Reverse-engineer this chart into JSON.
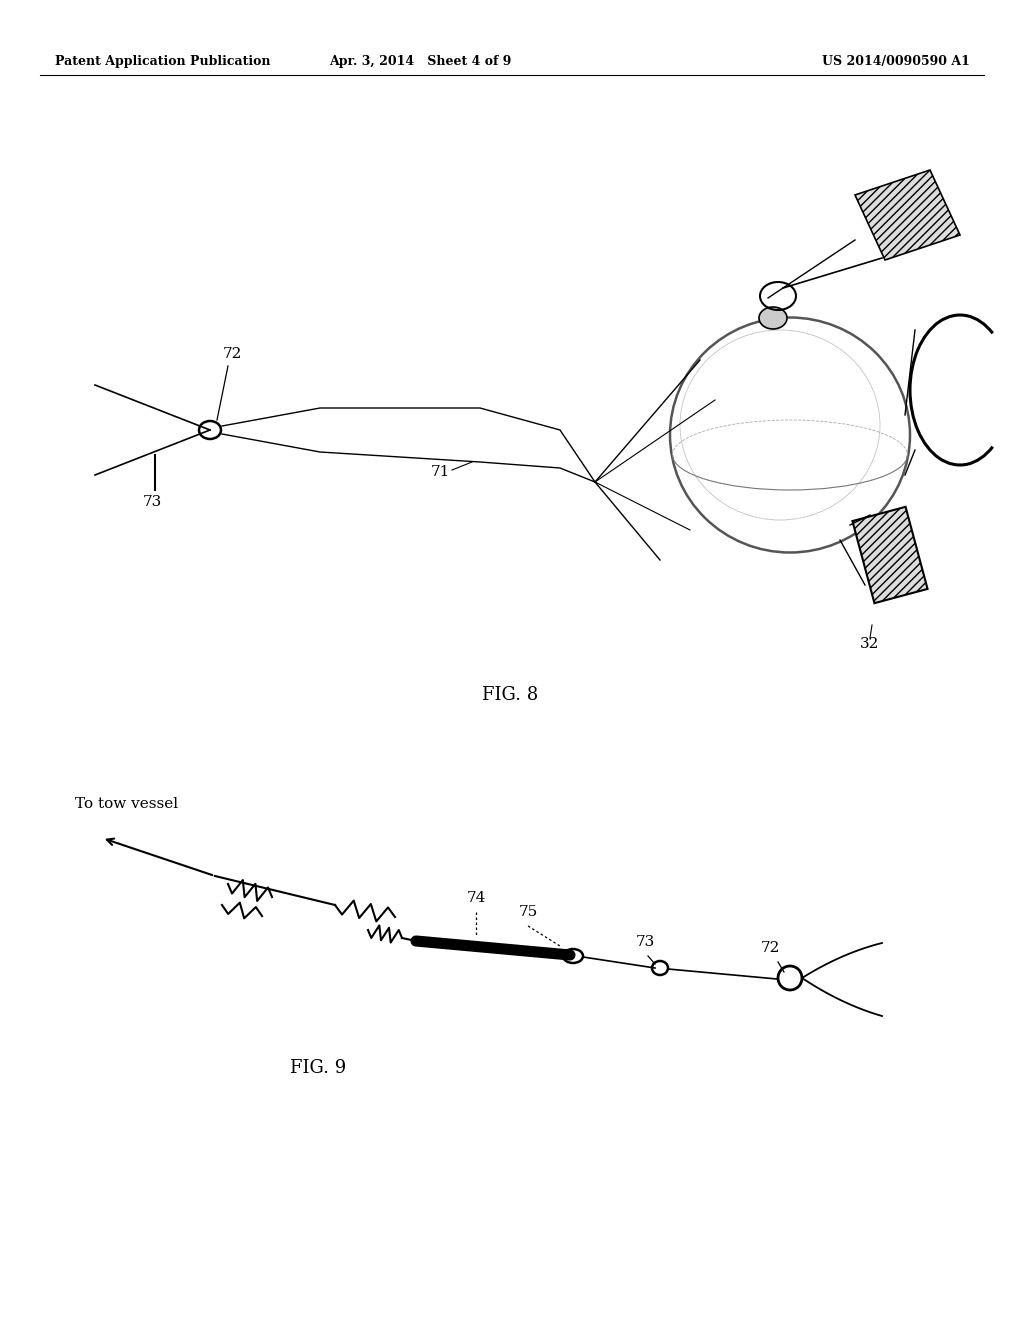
{
  "background_color": "#ffffff",
  "header_left": "Patent Application Publication",
  "header_center": "Apr. 3, 2014   Sheet 4 of 9",
  "header_right": "US 2014/0090590 A1",
  "fig8_label": "FIG. 8",
  "fig9_label": "FIG. 9",
  "label_72_fig8": "72",
  "label_73_fig8": "73",
  "label_71_fig8": "71",
  "label_32_fig8": "32",
  "label_74_fig9": "74",
  "label_75_fig9": "75",
  "label_73_fig9": "73",
  "label_72_fig9": "72",
  "fig9_text": "To tow vessel"
}
